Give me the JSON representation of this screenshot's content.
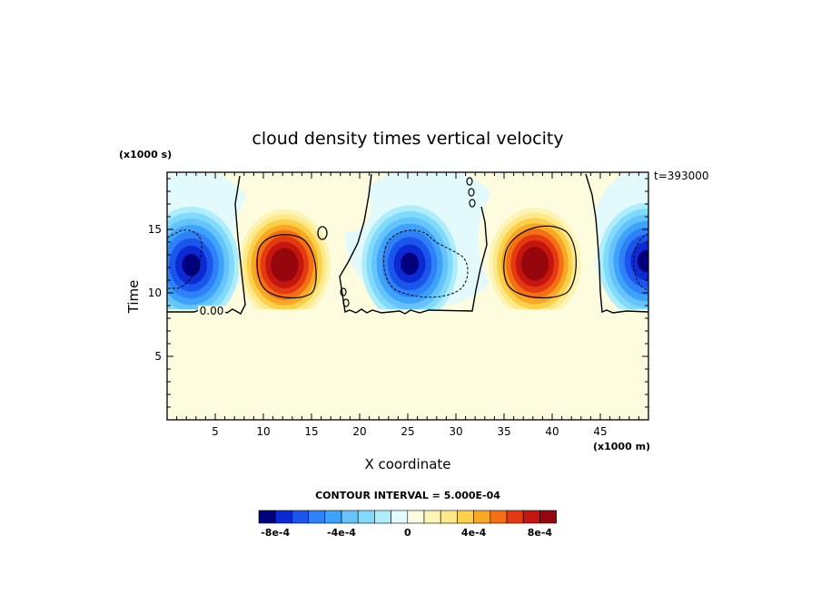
{
  "chart_data": {
    "type": "heatmap",
    "title": "cloud density times vertical velocity",
    "xlabel": "X coordinate",
    "ylabel": "Time",
    "x_units": "(x1000 m)",
    "y_units": "(x1000 s)",
    "time_label": "t=393000",
    "xlim": [
      0,
      50
    ],
    "ylim": [
      0,
      19.5
    ],
    "x_ticks": [
      "5",
      "10",
      "15",
      "20",
      "25",
      "30",
      "35",
      "40",
      "45"
    ],
    "x_tick_values": [
      5,
      10,
      15,
      20,
      25,
      30,
      35,
      40,
      45
    ],
    "y_ticks": [
      "5",
      "10",
      "15"
    ],
    "y_tick_values": [
      5,
      10,
      15
    ],
    "contour_interval": "CONTOUR INTERVAL = 5.000E-04",
    "zero_contour_label": "0.00",
    "features": [
      {
        "kind": "negative",
        "x": 2.5,
        "y": 12.2,
        "min": -0.00085
      },
      {
        "kind": "positive",
        "x": 12.2,
        "y": 12.2,
        "max": 0.0009
      },
      {
        "kind": "negative",
        "x": 25.2,
        "y": 12.3,
        "min": -0.0008
      },
      {
        "kind": "positive",
        "x": 38.2,
        "y": 12.3,
        "max": 0.00095
      },
      {
        "kind": "negative",
        "x": 49.8,
        "y": 12.5,
        "min": -0.00085
      }
    ],
    "colorbar": {
      "colors": [
        "#00007f",
        "#0b2ad2",
        "#1a55ec",
        "#2f81f7",
        "#3ea3fa",
        "#66c3fb",
        "#7fdafc",
        "#aeeefc",
        "#e3fafd",
        "#fefcdf",
        "#fdf5b5",
        "#fde88a",
        "#fbd14c",
        "#f9a825",
        "#f57014",
        "#e43a11",
        "#c4150f",
        "#95070c"
      ],
      "tick_labels": [
        "-8e-4",
        "-4e-4",
        "0",
        "4e-4",
        "8e-4"
      ],
      "tick_values": [
        -0.0008,
        -0.0004,
        0,
        0.0004,
        0.0008
      ]
    }
  }
}
